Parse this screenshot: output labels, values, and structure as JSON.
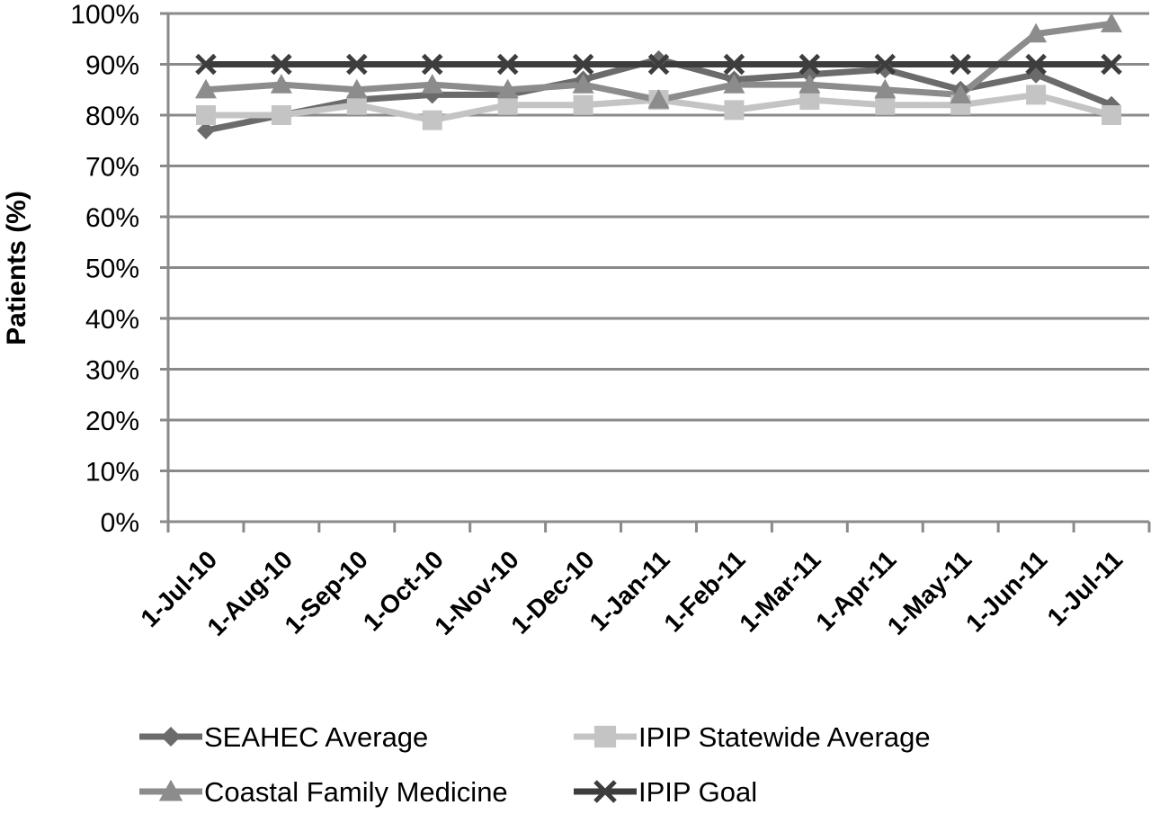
{
  "chart_data": {
    "type": "line",
    "title": "",
    "xlabel": "",
    "ylabel": "Patients (%)",
    "ylim": [
      0,
      100
    ],
    "y_ticks": [
      "0%",
      "10%",
      "20%",
      "30%",
      "40%",
      "50%",
      "60%",
      "70%",
      "80%",
      "90%",
      "100%"
    ],
    "y_tick_values": [
      0,
      10,
      20,
      30,
      40,
      50,
      60,
      70,
      80,
      90,
      100
    ],
    "grid": true,
    "legend_position": "bottom",
    "categories": [
      "1-Jul-10",
      "1-Aug-10",
      "1-Sep-10",
      "1-Oct-10",
      "1-Nov-10",
      "1-Dec-10",
      "1-Jan-11",
      "1-Feb-11",
      "1-Mar-11",
      "1-Apr-11",
      "1-May-11",
      "1-Jun-11",
      "1-Jul-11"
    ],
    "series": [
      {
        "name": "SEAHEC Average",
        "marker": "diamond",
        "color": "#6b6b6b",
        "values": [
          77,
          80,
          83,
          84,
          84,
          87,
          91,
          87,
          88,
          89,
          85,
          88,
          82
        ]
      },
      {
        "name": "IPIP Statewide Average",
        "marker": "square",
        "color": "#c4c4c4",
        "values": [
          80,
          80,
          82,
          79,
          82,
          82,
          83,
          81,
          83,
          82,
          82,
          84,
          80
        ]
      },
      {
        "name": "Coastal Family Medicine",
        "marker": "triangle",
        "color": "#8c8c8c",
        "values": [
          85,
          86,
          85,
          86,
          85,
          86,
          83,
          86,
          86,
          85,
          84,
          96,
          98
        ]
      },
      {
        "name": "IPIP Goal",
        "marker": "x",
        "color": "#3d3d3d",
        "values": [
          90,
          90,
          90,
          90,
          90,
          90,
          90,
          90,
          90,
          90,
          90,
          90,
          90
        ]
      }
    ]
  }
}
